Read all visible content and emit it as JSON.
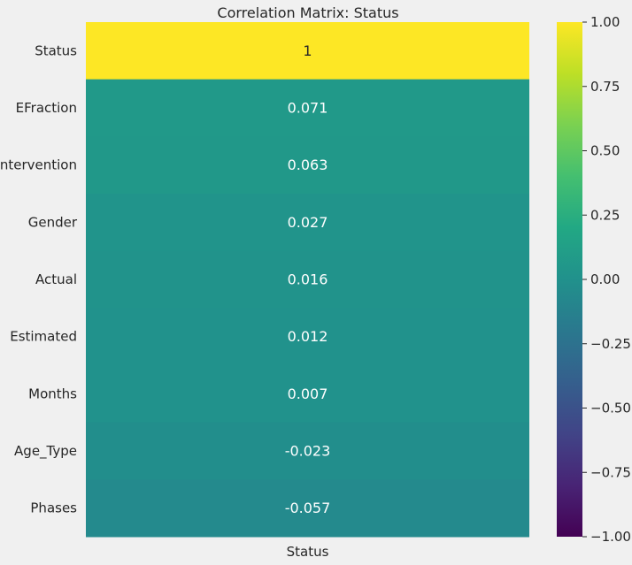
{
  "chart_data": {
    "type": "heatmap",
    "title": "Correlation Matrix: Status",
    "columns": [
      "Status"
    ],
    "rows": [
      "Status",
      "EFraction",
      "Intervention",
      "Gender",
      "Actual",
      "Estimated",
      "Months",
      "Age_Type",
      "Phases"
    ],
    "values": [
      1,
      0.071,
      0.063,
      0.027,
      0.016,
      0.012,
      0.007,
      -0.023,
      -0.057
    ],
    "value_labels": [
      "1",
      "0.071",
      "0.063",
      "0.027",
      "0.016",
      "0.012",
      "0.007",
      "-0.023",
      "-0.057"
    ],
    "colormap": "viridis",
    "vmin": -1,
    "vmax": 1,
    "colorbar_ticks": [
      1.0,
      0.75,
      0.5,
      0.25,
      0.0,
      -0.25,
      -0.5,
      -0.75,
      -1.0
    ],
    "colorbar_tick_labels": [
      "1.00",
      "0.75",
      "0.50",
      "0.25",
      "0.00",
      "−0.25",
      "−0.50",
      "−0.75",
      "−1.00"
    ],
    "background_color": "#f0f0f0",
    "text_color": "#262626"
  }
}
